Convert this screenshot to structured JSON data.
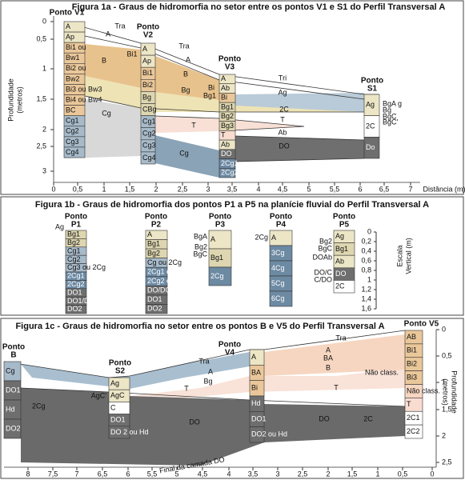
{
  "fig1a": {
    "title": "Figura 1a  - Graus de hidromorfia no setor entre os pontos V1 e S1 do Perfil Transversal A",
    "y_label": [
      "Profundidade",
      "(metros)"
    ],
    "x_label": "Distância (m)",
    "x_ticks": [
      "0",
      "0,5",
      "1",
      "1,5",
      "2",
      "2,5",
      "3",
      "3,5",
      "4",
      "4,5",
      "5",
      "5,5",
      "6",
      "6,5",
      "7"
    ],
    "y_ticks": [
      "0",
      "0,5",
      "1",
      "1,5",
      "2",
      "2,5",
      "3"
    ],
    "points": [
      {
        "label": "Ponto",
        "id": "V1",
        "horizons": [
          "A",
          "Ap",
          "Bi1 ou",
          "Bw1",
          "Bi2 ou",
          "Bw2",
          "Bi3 ou Bw3",
          "Bi4 ou Bw4",
          "BC",
          "Cg1",
          "Cg2",
          "Cg3",
          "Cg4"
        ]
      },
      {
        "label": "Ponto",
        "id": "V2",
        "horizons": [
          "A",
          "Ap",
          "Bi1",
          "Bi2",
          "Bg",
          "CBg",
          "Cg1",
          "Cg2",
          "Cg3",
          "Cg4"
        ]
      },
      {
        "label": "Ponto",
        "id": "V3",
        "horizons": [
          "A",
          "Ab",
          "Bi",
          "Bg1",
          "Bg2",
          "Bg3",
          "T",
          "Ab",
          "DO",
          "2Cg1",
          "2Cg2"
        ]
      },
      {
        "label": "Ponto",
        "id": "S1",
        "horizons": [
          "Ag",
          "2C",
          "Do"
        ]
      }
    ],
    "labels": [
      "Tra",
      "A",
      "Bi1",
      "B",
      "Tra",
      "A",
      "B",
      "Bg",
      "Bi",
      "Bg1",
      "Cg",
      "Cg",
      "T",
      "Tri",
      "Ag",
      "2C",
      "T",
      "Ab",
      "DO",
      "BgA g",
      "Bg",
      "BgC",
      "BgC'"
    ]
  },
  "fig1b": {
    "title": "Figura 1b - Graus de hidromorfia dos pontos P1 a P5 na planície fluvial do Perfil Transversal A",
    "scale_label": [
      "Escala",
      "Vertical (m)"
    ],
    "scale_ticks": [
      "0",
      "0,2",
      "0,4",
      "0,6",
      "0,8",
      "1",
      "1,2",
      "1,4",
      "1,6"
    ],
    "points": [
      {
        "label": "Ponto",
        "id": "P1",
        "horizons": [
          "Bg1",
          "Bg2",
          "Cg1",
          "Cg2",
          "Cg3 ou 2Cg",
          "2Cg1 ou 3Cg1",
          "2Cg2 ou 3Cg2",
          "DO1",
          "DO1/DO2",
          "DO2"
        ]
      },
      {
        "label": "Ponto",
        "id": "P2",
        "horizons": [
          "A",
          "Bg1",
          "Bg2",
          "Cg ou 2Cg",
          "2Cg1 ou 3Cg1",
          "2Cg2 ou 3Cg2",
          "DO/DO1",
          "DO1",
          "DO2"
        ]
      },
      {
        "label": "Ponto",
        "id": "P3",
        "horizons": [
          "A",
          "Bg1",
          "2Cg"
        ]
      },
      {
        "label": "Ponto",
        "id": "P4",
        "horizons": [
          "A",
          "3Cg",
          "4Cg",
          "5Cg",
          "6Cg"
        ]
      },
      {
        "label": "Ponto",
        "id": "P5",
        "horizons": [
          "Ag",
          "Bg1",
          "Ab",
          "DO",
          "2C"
        ]
      }
    ],
    "labels": [
      "Ag",
      "BgA",
      "Bg2",
      "BgC",
      "2Cg",
      "Bg2",
      "BgC",
      "DOAb",
      "DO/C",
      "C/DO"
    ]
  },
  "fig1c": {
    "title": "Figura 1c - Graus de hidromorfia no setor entre os pontos B e V5 do Perfil Transversal A",
    "y_label": [
      "Profundidade",
      "(metros)"
    ],
    "x_ticks": [
      "8",
      "7,5",
      "7",
      "6,5",
      "6",
      "5,5",
      "5",
      "4,5",
      "4",
      "3,5",
      "3",
      "2,5",
      "2",
      "1,5",
      "1",
      "0,5",
      "0"
    ],
    "y_ticks": [
      "0",
      "0,5",
      "1",
      "1,5",
      "2",
      "2,5"
    ],
    "points": [
      {
        "label": "Ponto",
        "id": "B",
        "horizons": [
          "Cg",
          "DO1",
          "Hd",
          "DO2"
        ]
      },
      {
        "label": "Ponto",
        "id": "S2",
        "horizons": [
          "Ag",
          "AgC",
          "C",
          "DO1",
          "DO 2 ou Hd"
        ]
      },
      {
        "label": "Ponto",
        "id": "V4",
        "horizons": [
          "A",
          "BA",
          "Bi",
          "Hd",
          "DO1",
          "DO2 ou Hd"
        ]
      },
      {
        "label": "Ponto",
        "id": "V5",
        "horizons": [
          "AB",
          "Bi1",
          "Bi2",
          "Bi3",
          "Não class.",
          "T",
          "2C1",
          "2C2"
        ]
      }
    ],
    "labels": [
      "2Cg",
      "AgC'",
      "Tra",
      "A",
      "Bg",
      "T",
      "DO",
      "Tra",
      "A",
      "BA",
      "B",
      "Não class.",
      "T",
      "DO",
      "2C",
      "Final da camada DO"
    ]
  }
}
